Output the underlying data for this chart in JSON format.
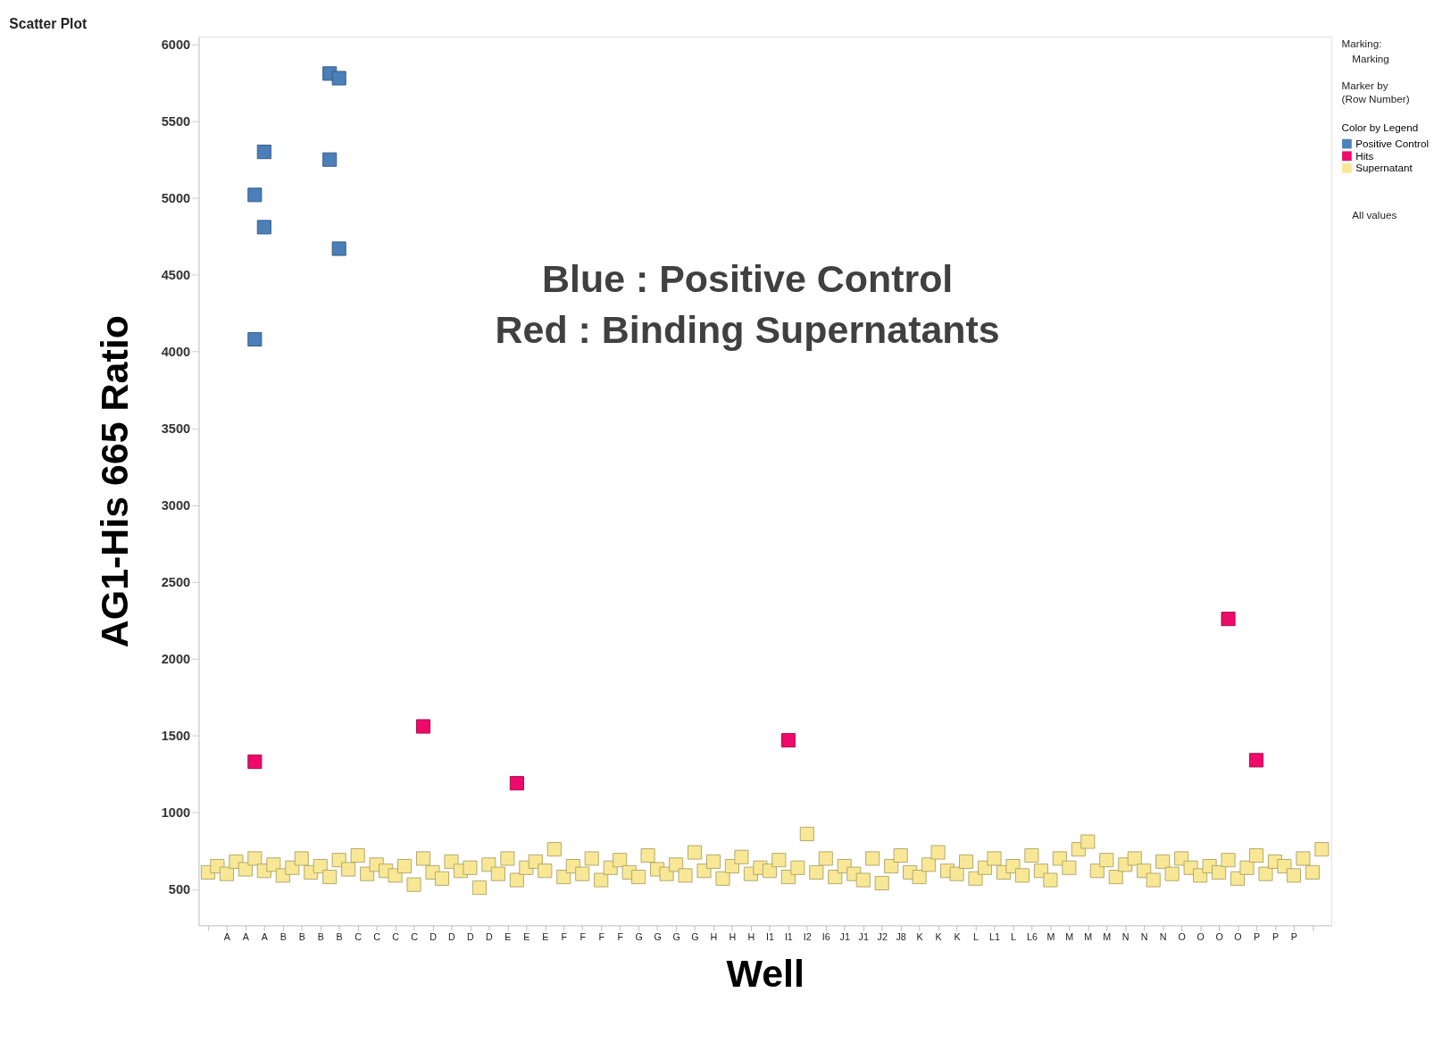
{
  "chart_data": {
    "type": "scatter",
    "title": "Scatter Plot",
    "xlabel": "Well",
    "ylabel": "AG1-His 665 Ratio",
    "legend_title": "Color by Legend",
    "legend": "top right",
    "marker": "square",
    "grid": false,
    "ylim": [
      265,
      6050
    ],
    "yticks": [
      500,
      1000,
      1500,
      2000,
      2500,
      3000,
      3500,
      4000,
      4500,
      5000,
      5500,
      6000
    ],
    "categories": [
      null,
      null,
      "A",
      null,
      "A",
      null,
      "A",
      null,
      "B",
      null,
      "B",
      null,
      "B",
      null,
      "B",
      null,
      "C",
      null,
      "C",
      null,
      "C",
      null,
      "C",
      null,
      "D",
      null,
      "D",
      null,
      "D",
      null,
      "D",
      null,
      "E",
      null,
      "E",
      null,
      "E",
      null,
      "F",
      null,
      "F",
      null,
      "F",
      null,
      "F",
      null,
      "G",
      null,
      "G",
      null,
      "G",
      null,
      "G",
      null,
      "H",
      null,
      "H",
      null,
      "H",
      null,
      "I1",
      null,
      "I1",
      null,
      "I2",
      null,
      "I6",
      null,
      "J1",
      null,
      "J1",
      null,
      "J2",
      null,
      "J8",
      null,
      "K",
      null,
      "K",
      null,
      "K",
      null,
      "L",
      null,
      "L1",
      null,
      "L",
      null,
      "L6",
      null,
      "M",
      null,
      "M",
      null,
      "M",
      null,
      "M",
      null,
      "N",
      null,
      "N",
      null,
      "N",
      null,
      "O",
      null,
      "O",
      null,
      "O",
      null,
      "O",
      null,
      "P",
      null,
      "P",
      null,
      "P",
      null,
      null,
      null
    ],
    "annotations": [
      "Blue : Positive Control",
      "Red : Binding Supernatants",
      "Marking:",
      "Marking",
      "Marker by",
      "(Row Number)",
      "All values"
    ],
    "series": [
      {
        "name": "Positive Control",
        "color": "#4a7fb8",
        "values": [
          null,
          null,
          null,
          null,
          null,
          5020,
          5300,
          null,
          null,
          null,
          null,
          null,
          null,
          5810,
          5780,
          null,
          null,
          null,
          null,
          null,
          null,
          null,
          null,
          null,
          null,
          null,
          null,
          null,
          null,
          null,
          null,
          null,
          null,
          null,
          null,
          null,
          null,
          null,
          null,
          null,
          null,
          null,
          null,
          null,
          null,
          null,
          null,
          null,
          null,
          null,
          null,
          null,
          null,
          null,
          null,
          null,
          null,
          null,
          null,
          null,
          null,
          null,
          null,
          null,
          null,
          null,
          null,
          null,
          null,
          null,
          null,
          null,
          null,
          null,
          null,
          null,
          null,
          null,
          null,
          null,
          null,
          null,
          null,
          null,
          null,
          null,
          null,
          null,
          null,
          null,
          null,
          null,
          null,
          null,
          null,
          null,
          null,
          null,
          null,
          null,
          null,
          null,
          null,
          null,
          null,
          null,
          null,
          null,
          null,
          null,
          null,
          null,
          null,
          null,
          null,
          null,
          null,
          null,
          null,
          null
        ]
      },
      {
        "color": "#4a7fb8",
        "values": [
          null,
          null,
          null,
          null,
          null,
          4080,
          4810,
          null,
          null,
          null,
          null,
          null,
          null,
          5250,
          4670,
          null,
          null,
          null,
          null,
          null,
          null,
          null,
          null,
          null,
          null,
          null,
          null,
          null,
          null,
          null,
          null,
          null,
          null,
          null,
          null,
          null,
          null,
          null,
          null,
          null,
          null,
          null,
          null,
          null,
          null,
          null,
          null,
          null,
          null,
          null,
          null,
          null,
          null,
          null,
          null,
          null,
          null,
          null,
          null,
          null,
          null,
          null,
          null,
          null,
          null,
          null,
          null,
          null,
          null,
          null,
          null,
          null,
          null,
          null,
          null,
          null,
          null,
          null,
          null,
          null,
          null,
          null,
          null,
          null,
          null,
          null,
          null,
          null,
          null,
          null,
          null,
          null,
          null,
          null,
          null,
          null,
          null,
          null,
          null,
          null,
          null,
          null,
          null,
          null,
          null,
          null,
          null,
          null,
          null,
          null,
          null,
          null,
          null,
          null,
          null,
          null,
          null,
          null,
          null,
          null
        ]
      },
      {
        "name": "Hits",
        "color": "#ee0a6a",
        "values": [
          null,
          null,
          null,
          null,
          null,
          1330,
          null,
          null,
          null,
          null,
          null,
          null,
          null,
          null,
          null,
          null,
          null,
          null,
          null,
          null,
          null,
          null,
          null,
          1560,
          null,
          null,
          null,
          null,
          null,
          null,
          null,
          null,
          null,
          1190,
          null,
          null,
          null,
          null,
          null,
          null,
          null,
          null,
          null,
          null,
          null,
          null,
          null,
          null,
          null,
          null,
          null,
          null,
          null,
          null,
          null,
          null,
          null,
          null,
          null,
          null,
          null,
          null,
          1470,
          null,
          null,
          null,
          null,
          null,
          null,
          null,
          null,
          null,
          null,
          null,
          null,
          null,
          null,
          null,
          null,
          null,
          null,
          null,
          null,
          null,
          null,
          null,
          null,
          null,
          null,
          null,
          null,
          null,
          null,
          null,
          null,
          null,
          null,
          null,
          null,
          null,
          null,
          null,
          null,
          null,
          null,
          null,
          null,
          null,
          null,
          2260,
          null,
          null,
          1340,
          null,
          null,
          null,
          null,
          null,
          null,
          null
        ]
      },
      {
        "name": "Supernatant",
        "color": "#f8e896",
        "values": [
          610,
          650,
          600,
          680,
          630,
          700,
          620,
          660,
          590,
          640,
          700,
          610,
          650,
          580,
          690,
          630,
          720,
          600,
          660,
          620,
          590,
          650,
          530,
          700,
          610,
          570,
          680,
          620,
          640,
          510,
          660,
          600,
          700,
          560,
          640,
          680,
          620,
          760,
          580,
          650,
          600,
          700,
          560,
          640,
          690,
          610,
          580,
          720,
          630,
          600,
          660,
          590,
          740,
          620,
          680,
          570,
          650,
          710,
          600,
          640,
          620,
          690,
          580,
          640,
          860,
          610,
          700,
          580,
          650,
          600,
          560,
          700,
          540,
          650,
          720,
          610,
          580,
          660,
          740,
          620,
          600,
          680,
          570,
          640,
          700,
          610,
          650,
          590,
          720,
          620,
          560,
          700,
          640,
          760,
          810,
          620,
          690,
          580,
          660,
          700,
          620,
          560,
          680,
          600,
          700,
          640,
          590,
          650,
          610,
          690,
          570,
          640,
          720,
          600,
          680,
          650,
          590,
          700,
          610,
          760
        ]
      }
    ]
  }
}
